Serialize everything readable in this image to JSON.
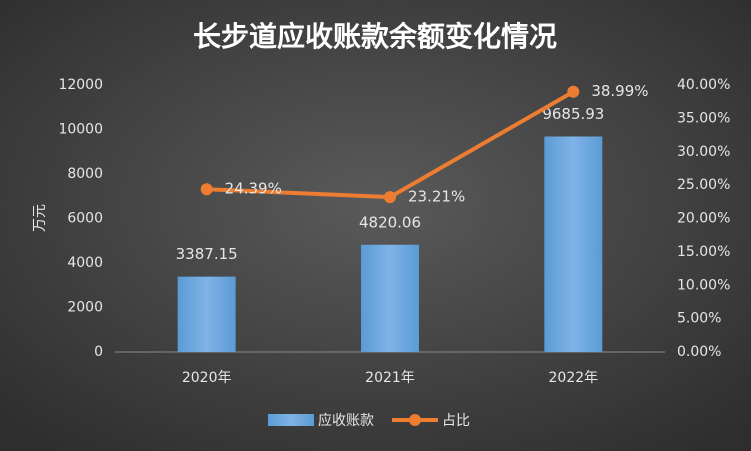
{
  "chart_data": {
    "type": "bar_line",
    "title": "长步道应收账款余额变化情况",
    "y_label": "万元",
    "categories": [
      "2020年",
      "2021年",
      "2022年"
    ],
    "series": [
      {
        "name": "应收账款",
        "type": "bar",
        "color": "#5b9bd5",
        "values": [
          3387.15,
          4820.06,
          9685.93
        ]
      },
      {
        "name": "占比",
        "type": "line",
        "axis": "y2",
        "color": "#ed7d31",
        "values": [
          24.39,
          23.21,
          38.99
        ],
        "value_labels": [
          "24.39%",
          "23.21%",
          "38.99%"
        ]
      }
    ],
    "ylim": [
      0,
      12000
    ],
    "yticks": [
      0,
      2000,
      4000,
      6000,
      8000,
      10000,
      12000
    ],
    "y2lim": [
      0,
      40
    ],
    "y2ticks": [
      {
        "value": 0,
        "label": "0.00%"
      },
      {
        "value": 5,
        "label": "5.00%"
      },
      {
        "value": 10,
        "label": "10.00%"
      },
      {
        "value": 15,
        "label": "15.00%"
      },
      {
        "value": 20,
        "label": "20.00%"
      },
      {
        "value": 25,
        "label": "25.00%"
      },
      {
        "value": 30,
        "label": "30.00%"
      },
      {
        "value": 35,
        "label": "35.00%"
      },
      {
        "value": 40,
        "label": "40.00%"
      }
    ],
    "legend": "bottom"
  }
}
